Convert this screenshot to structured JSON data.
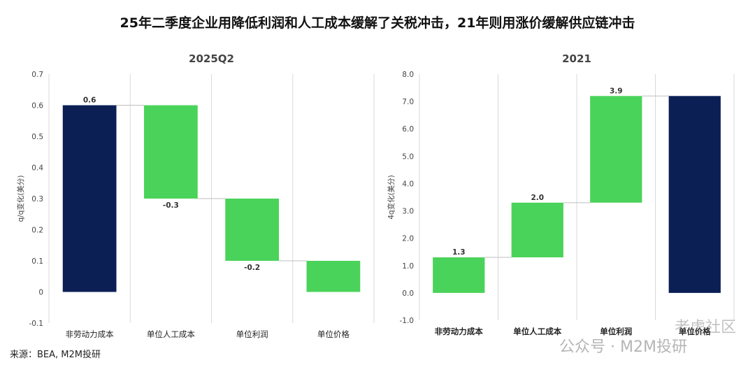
{
  "title": "25年二季度企业用降低利润和人工成本缓解了关税冲击，21年则用涨价缓解供应链冲击",
  "source": "来源：BEA, M2M投研",
  "watermark": "公众号 · M2M投研",
  "watermark2": "老虎社区",
  "colors": {
    "dark": "#0b1f55",
    "green": "#4ad35a",
    "grid": "#d9d9d9"
  },
  "chart_data": [
    {
      "type": "bar",
      "subtype": "waterfall",
      "title": "2025Q2",
      "ylabel": "q/q变化(美分)",
      "ylim": [
        -0.1,
        0.7
      ],
      "yticks": [
        "-0.1",
        "0",
        "0.1",
        "0.2",
        "0.3",
        "0.4",
        "0.5",
        "0.6",
        "0.7"
      ],
      "categories": [
        "非劳动力成本",
        "单位人工成本",
        "单位利润",
        "单位价格"
      ],
      "bars": [
        {
          "bottom": 0,
          "top": 0.6,
          "label": "0.6",
          "color": "dark"
        },
        {
          "bottom": 0.3,
          "top": 0.6,
          "label": "-0.3",
          "color": "green"
        },
        {
          "bottom": 0.1,
          "top": 0.3,
          "label": "-0.2",
          "color": "green"
        },
        {
          "bottom": 0,
          "top": 0.1,
          "label": "",
          "color": "green"
        }
      ]
    },
    {
      "type": "bar",
      "subtype": "waterfall",
      "title": "2021",
      "ylabel": "4q变化(美分)",
      "ylim": [
        -1.0,
        8.0
      ],
      "yticks": [
        "-1.0",
        "0.0",
        "1.0",
        "2.0",
        "3.0",
        "4.0",
        "5.0",
        "6.0",
        "7.0",
        "8.0"
      ],
      "categories": [
        "非劳动力成本",
        "单位人工成本",
        "单位利润",
        "单位价格"
      ],
      "bars": [
        {
          "bottom": 0,
          "top": 1.3,
          "label": "1.3",
          "color": "green"
        },
        {
          "bottom": 1.3,
          "top": 3.3,
          "label": "2.0",
          "color": "green"
        },
        {
          "bottom": 3.3,
          "top": 7.2,
          "label": "3.9",
          "color": "green"
        },
        {
          "bottom": 0,
          "top": 7.2,
          "label": "",
          "color": "dark"
        }
      ]
    }
  ]
}
